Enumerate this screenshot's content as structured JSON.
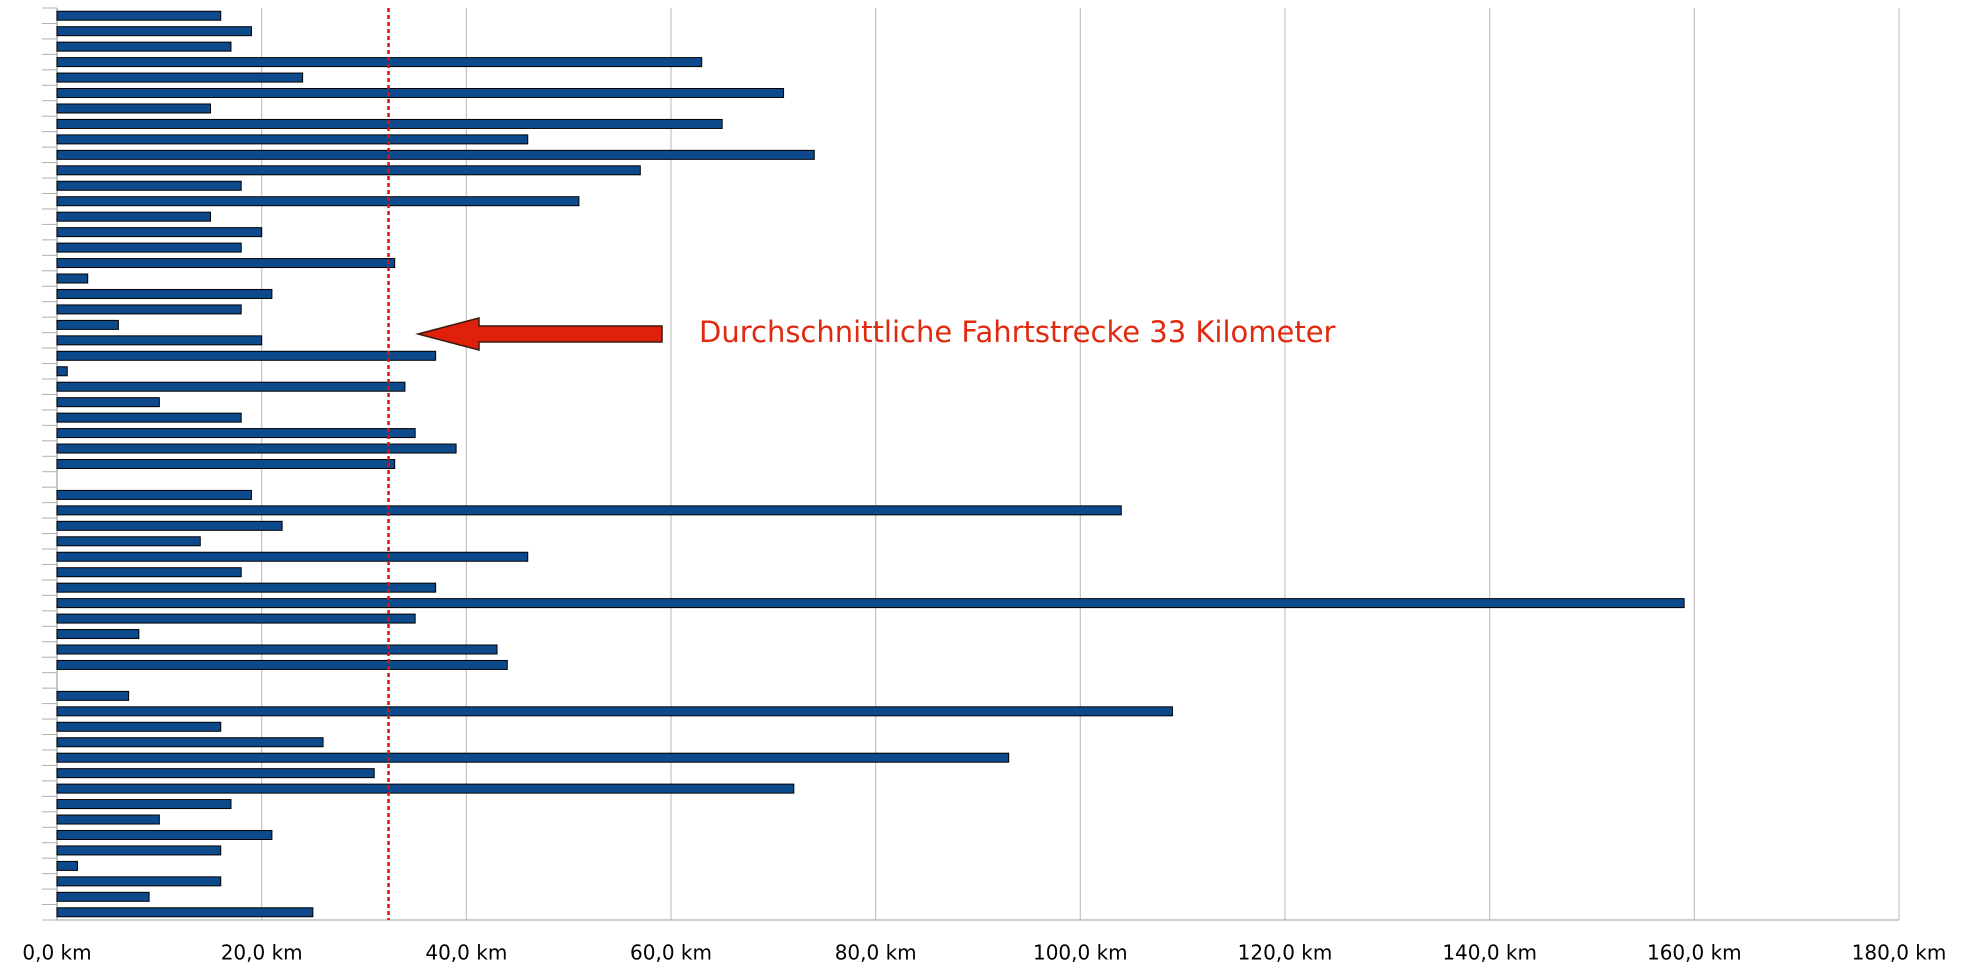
{
  "chart_data": {
    "type": "barh",
    "categories": [
      null,
      null,
      null,
      null,
      null,
      null,
      null,
      null,
      null,
      null,
      null,
      null,
      null,
      null,
      null,
      null,
      null,
      null,
      null,
      null,
      null,
      null,
      null,
      null,
      null,
      null,
      null,
      null,
      null,
      null,
      null,
      null,
      null,
      null,
      null,
      null,
      null,
      null,
      null,
      null,
      null,
      null,
      null,
      null,
      null,
      null,
      null,
      null,
      null,
      null,
      null,
      null,
      null,
      null,
      null,
      null,
      null,
      null,
      null
    ],
    "values": [
      16,
      19,
      17,
      63,
      24,
      71,
      15,
      65,
      46,
      74,
      57,
      18,
      51,
      15,
      20,
      18,
      33,
      3,
      21,
      18,
      6,
      20,
      37,
      1,
      34,
      10,
      18,
      35,
      39,
      33,
      null,
      19,
      104,
      22,
      14,
      46,
      18,
      37,
      159,
      35,
      8,
      43,
      44,
      null,
      7,
      109,
      16,
      26,
      93,
      31,
      72,
      17,
      10,
      21,
      16,
      2,
      16,
      9,
      25
    ],
    "color": "#0d4a8c",
    "xlim": [
      0,
      180
    ],
    "xticks": [
      {
        "value": 0,
        "label": "0,0 km"
      },
      {
        "value": 20,
        "label": "20,0 km"
      },
      {
        "value": 40,
        "label": "40,0 km"
      },
      {
        "value": 60,
        "label": "60,0 km"
      },
      {
        "value": 80,
        "label": "80,0 km"
      },
      {
        "value": 100,
        "label": "100,0 km"
      },
      {
        "value": 120,
        "label": "120,0 km"
      },
      {
        "value": 140,
        "label": "140,0 km"
      },
      {
        "value": 160,
        "label": "160,0 km"
      },
      {
        "value": 180,
        "label": "180,0 km"
      }
    ],
    "grid": true,
    "average_line": 32.4,
    "average_line_color": "#e01010",
    "annotation": "Durchschnittliche Fahrtstrecke 33 Kilometer"
  }
}
